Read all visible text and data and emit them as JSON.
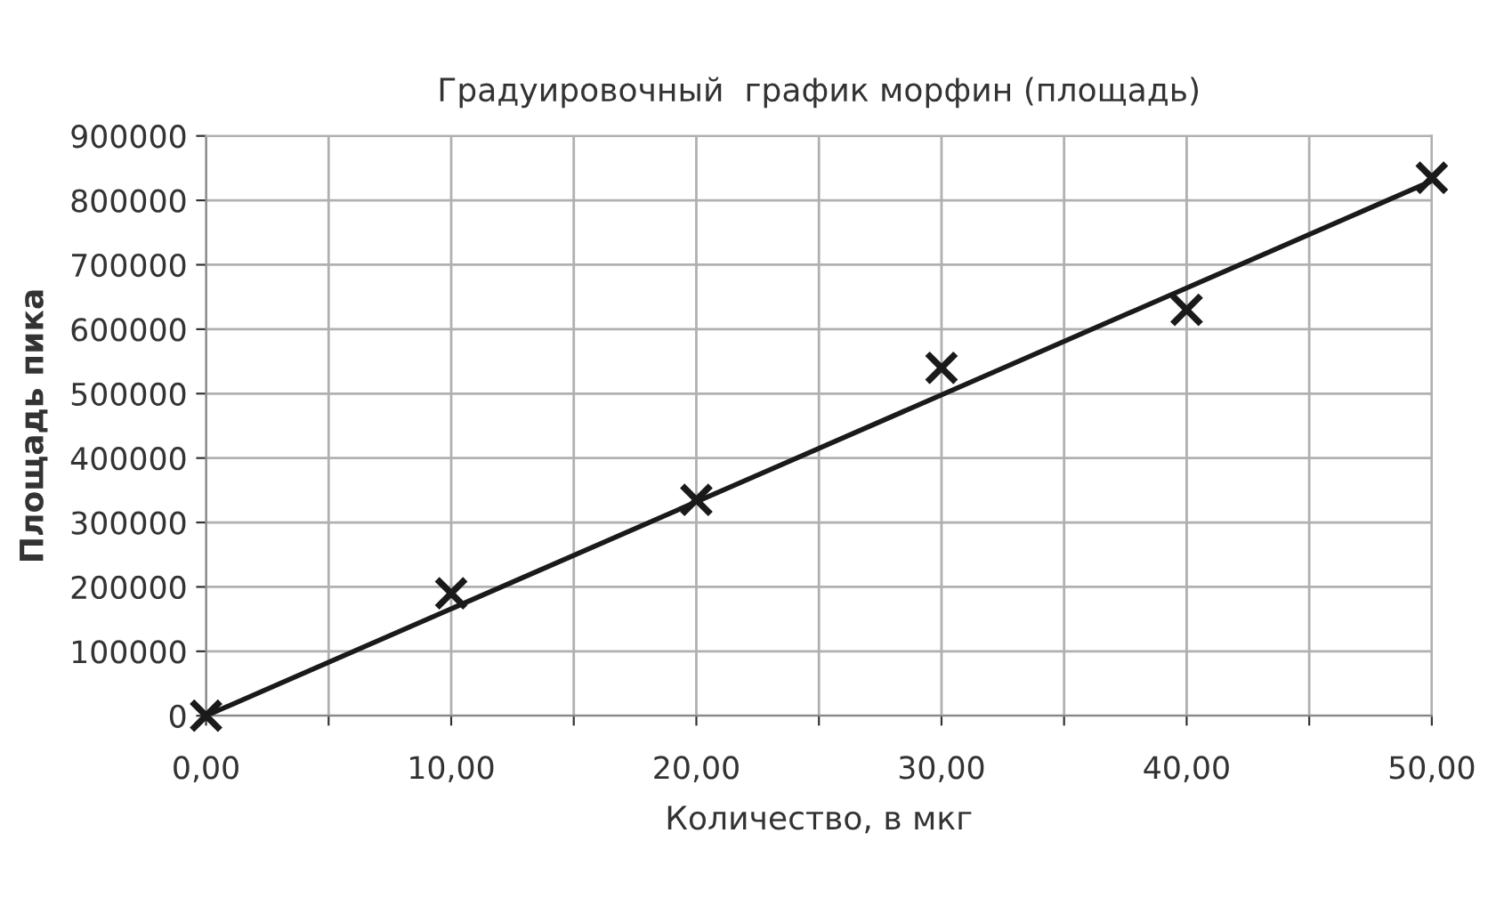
{
  "chart_data": {
    "type": "scatter",
    "title": "Градуировочный  график морфин (площадь)",
    "xlabel": "Количество, в мкг",
    "ylabel": "Площадь пика",
    "series": [
      {
        "color": "#1a1a1a",
        "marker": "cross",
        "x": [
          0,
          10,
          20,
          30,
          40,
          50
        ],
        "values": [
          0,
          190000,
          335000,
          540000,
          630000,
          835000
        ]
      },
      {
        "type": "line",
        "color": "#1a1a1a",
        "marker": "none",
        "line_style": "solid",
        "x": [
          0,
          50
        ],
        "values": [
          0,
          830000
        ]
      }
    ],
    "xlim": [
      0,
      50
    ],
    "ylim": [
      0,
      900000
    ],
    "xticks": [
      {
        "value": 0,
        "label": "0,00"
      },
      {
        "value": 5,
        "label": null
      },
      {
        "value": 10,
        "label": "10,00"
      },
      {
        "value": 15,
        "label": null
      },
      {
        "value": 20,
        "label": "20,00"
      },
      {
        "value": 25,
        "label": null
      },
      {
        "value": 30,
        "label": "30,00"
      },
      {
        "value": 35,
        "label": null
      },
      {
        "value": 40,
        "label": "40,00"
      },
      {
        "value": 45,
        "label": null
      },
      {
        "value": 50,
        "label": "50,00"
      }
    ],
    "yticks": [
      0,
      100000,
      200000,
      300000,
      400000,
      500000,
      600000,
      700000,
      800000,
      900000
    ],
    "grid": true,
    "legend": false
  }
}
